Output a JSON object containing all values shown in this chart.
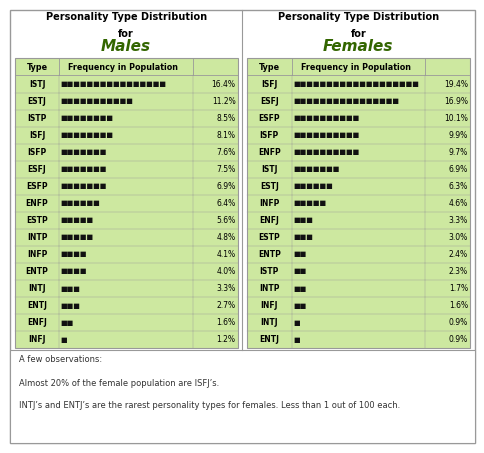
{
  "males": {
    "types": [
      "ISTJ",
      "ESTJ",
      "ISTP",
      "ISFJ",
      "ISFP",
      "ESFJ",
      "ESFP",
      "ENFP",
      "ESTP",
      "INTP",
      "INFP",
      "ENTP",
      "INTJ",
      "ENTJ",
      "ENFJ",
      "INFJ"
    ],
    "values": [
      16.4,
      11.2,
      8.5,
      8.1,
      7.6,
      7.5,
      6.9,
      6.4,
      5.6,
      4.8,
      4.1,
      4.0,
      3.3,
      2.7,
      1.6,
      1.2
    ],
    "squares": [
      16,
      11,
      8,
      8,
      7,
      7,
      7,
      6,
      5,
      5,
      4,
      4,
      3,
      3,
      2,
      1
    ]
  },
  "females": {
    "types": [
      "ISFJ",
      "ESFJ",
      "ESFP",
      "ISFP",
      "ENFP",
      "ISTJ",
      "ESTJ",
      "INFP",
      "ENFJ",
      "ESTP",
      "ENTP",
      "ISTP",
      "INTP",
      "INFJ",
      "INTJ",
      "ENTJ"
    ],
    "values": [
      19.4,
      16.9,
      10.1,
      9.9,
      9.7,
      6.9,
      6.3,
      4.6,
      3.3,
      3.0,
      2.4,
      2.3,
      1.7,
      1.6,
      0.9,
      0.9
    ],
    "squares": [
      19,
      16,
      10,
      10,
      10,
      7,
      6,
      5,
      3,
      3,
      2,
      2,
      2,
      2,
      1,
      1
    ]
  },
  "table_bg": "#cde8a0",
  "border_color": "#999999",
  "bar_color": "#111111",
  "title_color": "#000000",
  "subtitle_color": "#336600",
  "males_title_line1": "Personality Type Distribution",
  "males_title_line2": "for",
  "males_subtitle": "Males",
  "females_title_line1": "Personality Type Distribution",
  "females_title_line2": "for",
  "females_subtitle": "Females",
  "col_header_type": "Type",
  "col_header_freq": "Frequency in Population",
  "footer_line1": "A few observations:",
  "footer_line2": "Almost 20% of the female population are ISFJ’s.",
  "footer_line3": "INTJ’s and ENTJ’s are the rarest personality types for females. Less than 1 out of 100 each.",
  "outer_bg": "#ffffff",
  "outer_border": "#aaaaaa"
}
